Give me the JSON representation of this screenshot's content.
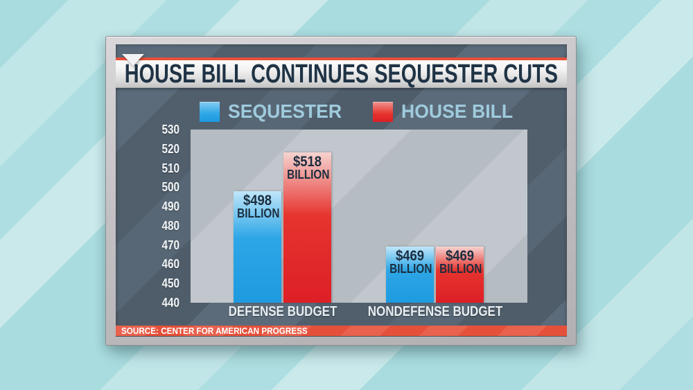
{
  "chart_data": {
    "type": "bar",
    "title": "HOUSE BILL CONTINUES SEQUESTER CUTS",
    "categories": [
      "DEFENSE BUDGET",
      "NONDEFENSE BUDGET"
    ],
    "series": [
      {
        "name": "SEQUESTER",
        "color": "#2da6e6",
        "color_light": "#c0e6f9",
        "color_dark": "#1e9ae0",
        "values": [
          498,
          469
        ],
        "value_labels": [
          [
            "$498",
            "BILLION"
          ],
          [
            "$469",
            "BILLION"
          ]
        ]
      },
      {
        "name": "HOUSE BILL",
        "color": "#e6342e",
        "color_light": "#f6d3d0",
        "color_dark": "#dd1f26",
        "values": [
          518,
          469
        ],
        "value_labels": [
          [
            "$518",
            "BILLION"
          ],
          [
            "$469",
            "BILLION"
          ]
        ]
      }
    ],
    "ylim": [
      440,
      530
    ],
    "yticks": [
      530,
      520,
      510,
      500,
      490,
      480,
      470,
      460,
      450,
      440
    ],
    "legend_position": "top",
    "grid": false
  },
  "source": {
    "label": "SOURCE: CENTER FOR AMERICAN PROGRESS"
  },
  "colors": {
    "accent_red": "#e8503a",
    "panel_slate": "#5b6b7a",
    "plot_gray": "#b5bcc2",
    "legend_text": "#9fcbdd",
    "title_text": "#1f3345",
    "background_cyan": "#a9dcdf"
  }
}
